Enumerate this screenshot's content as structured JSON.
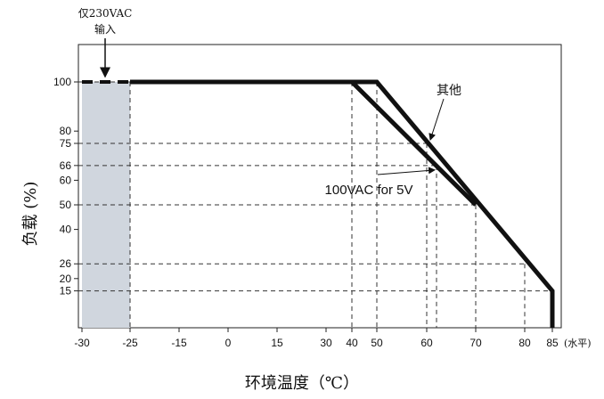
{
  "chart_data": {
    "type": "line",
    "xlabel": "环境温度（℃）",
    "ylabel": "负载 (%)",
    "x_unit": "(水平)",
    "xlim": [
      -30,
      88
    ],
    "ylim": [
      0,
      110
    ],
    "x_ticks": [
      -30,
      -25,
      -15,
      0,
      15,
      30,
      40,
      50,
      60,
      70,
      80,
      85
    ],
    "y_ticks": [
      100,
      80,
      75,
      66,
      60,
      50,
      40,
      26,
      20,
      15
    ],
    "x_tick_labels": [
      "-30",
      "-25",
      "-15",
      "0",
      "15",
      "30",
      "40",
      "50",
      "60",
      "70",
      "80",
      "85"
    ],
    "y_tick_labels": [
      "100",
      "80",
      "75",
      "66",
      "60",
      "50",
      "40",
      "26",
      "20",
      "15"
    ],
    "shaded_region": {
      "x": [
        -30,
        -25
      ]
    },
    "series": [
      {
        "name": "其他",
        "x": [
          -25,
          50,
          85,
          85
        ],
        "y": [
          100,
          100,
          15,
          0
        ]
      },
      {
        "name": "100VAC for 5V",
        "x": [
          -25,
          40,
          70
        ],
        "y": [
          100,
          100,
          50
        ]
      },
      {
        "name": "仅230VAC 输入",
        "x": [
          -30,
          -25
        ],
        "y": [
          100,
          100
        ],
        "style": "dashed"
      }
    ],
    "annotations": [
      {
        "text": "其他",
        "arrow_to": [
          60,
          75
        ]
      },
      {
        "text": "100VAC for 5V",
        "arrow_to": [
          62,
          66
        ]
      },
      {
        "text_line1": "仅230VAC",
        "text_line2": "输入",
        "arrow_to": [
          -28,
          100
        ]
      }
    ],
    "guides": [
      {
        "x": -25,
        "y": 100
      },
      {
        "x": 40,
        "y": 100
      },
      {
        "x": 50,
        "y": 100
      },
      {
        "x": 60,
        "y": 75
      },
      {
        "x": 62,
        "y": 66
      },
      {
        "x": 70,
        "y": 50
      },
      {
        "x": 80,
        "y": 26
      },
      {
        "x": 85,
        "y": 15
      }
    ]
  }
}
